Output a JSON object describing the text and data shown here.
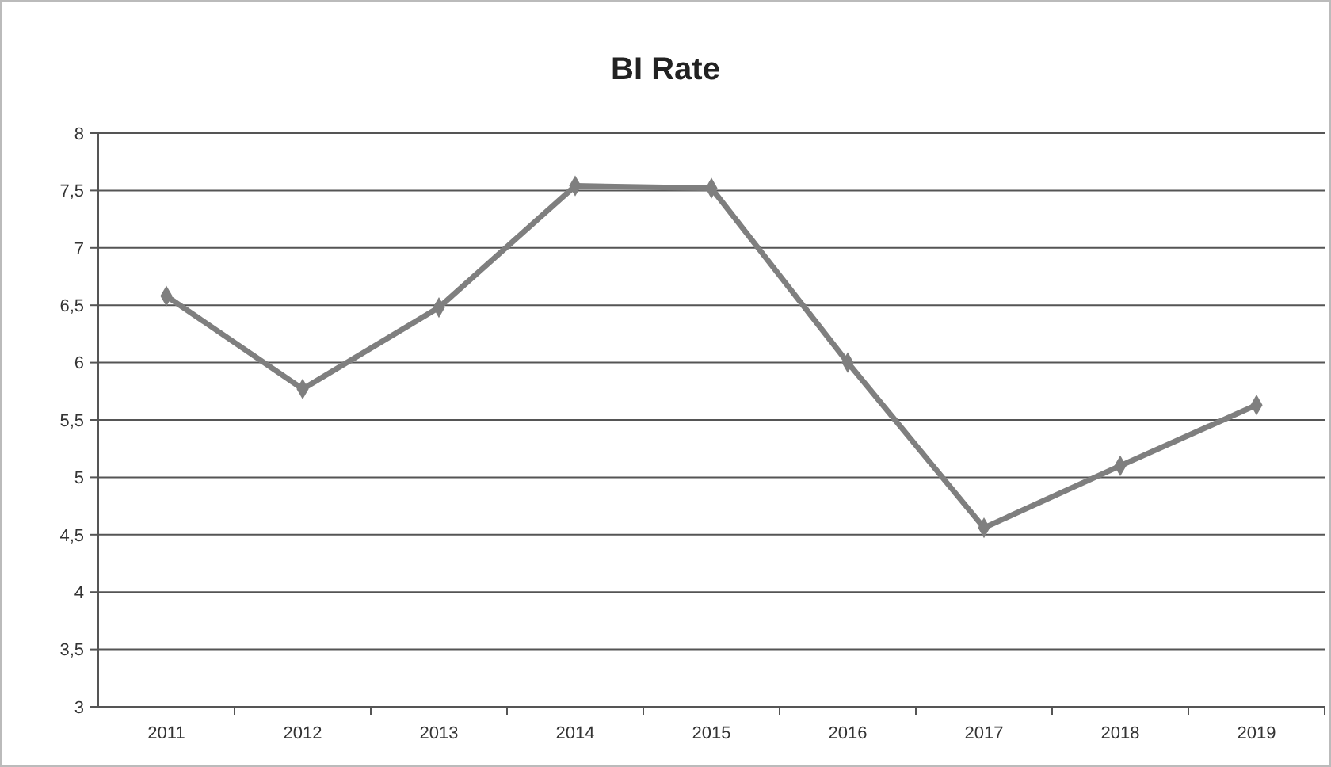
{
  "chart_data": {
    "type": "line",
    "title": "BI Rate",
    "categories": [
      "2011",
      "2012",
      "2013",
      "2014",
      "2015",
      "2016",
      "2017",
      "2018",
      "2019"
    ],
    "series": [
      {
        "color": "#7f7f7f",
        "values": [
          6.58,
          5.77,
          6.48,
          7.54,
          7.52,
          6.0,
          4.56,
          5.1,
          5.63
        ]
      }
    ],
    "ylim": [
      3,
      8
    ],
    "yticks": [
      3,
      {
        "value": 3.5,
        "label": "3,5"
      },
      4,
      {
        "value": 4.5,
        "label": "4,5"
      },
      5,
      {
        "value": 5.5,
        "label": "5,5"
      },
      6,
      {
        "value": 6.5,
        "label": "6,5"
      },
      7,
      {
        "value": 7.5,
        "label": "7,5"
      },
      8
    ],
    "grid": "y",
    "marker": "diamond",
    "line_style": "solid"
  }
}
